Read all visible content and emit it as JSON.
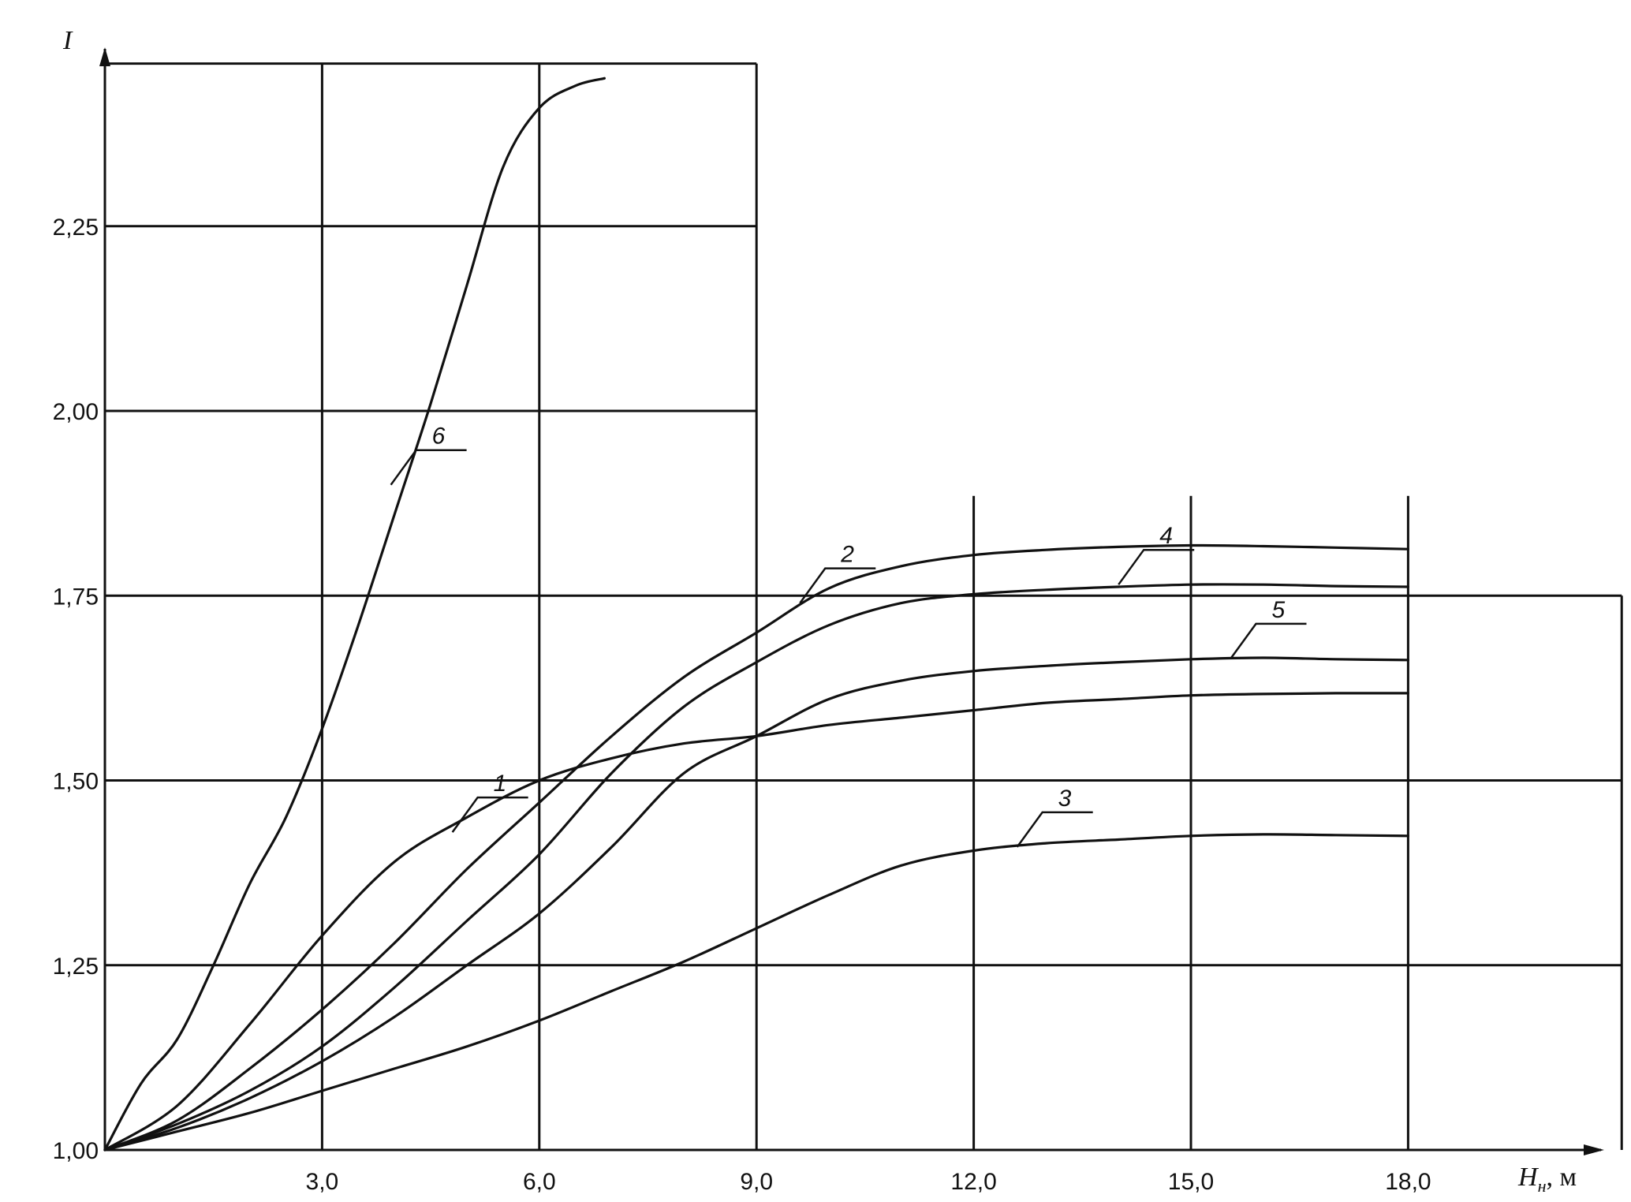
{
  "chart_data": {
    "type": "line",
    "ylabel": "I",
    "xlabel": {
      "symbol": "H",
      "subscript": "н",
      "unit": ", м"
    },
    "xlim": [
      0,
      21
    ],
    "ylim": [
      1.0,
      2.5
    ],
    "x_ticks": [
      {
        "value": 3,
        "label": "3,0"
      },
      {
        "value": 6,
        "label": "6,0"
      },
      {
        "value": 9,
        "label": "9,0"
      },
      {
        "value": 12,
        "label": "12,0"
      },
      {
        "value": 15,
        "label": "15,0"
      },
      {
        "value": 18,
        "label": "18,0"
      }
    ],
    "y_ticks": [
      {
        "value": 1.0,
        "label": "1,00"
      },
      {
        "value": 1.25,
        "label": "1,25"
      },
      {
        "value": 1.5,
        "label": "1,50"
      },
      {
        "value": 1.75,
        "label": "1,75"
      },
      {
        "value": 2.0,
        "label": "2,00"
      },
      {
        "value": 2.25,
        "label": "2,25"
      }
    ],
    "grid": true,
    "line_color": "#111111",
    "series": [
      {
        "name": "1",
        "points": [
          [
            0,
            1.0
          ],
          [
            1,
            1.06
          ],
          [
            2,
            1.17
          ],
          [
            3,
            1.29
          ],
          [
            4,
            1.39
          ],
          [
            5,
            1.45
          ],
          [
            6,
            1.5
          ],
          [
            7,
            1.53
          ],
          [
            8,
            1.55
          ],
          [
            9,
            1.56
          ],
          [
            10,
            1.575
          ],
          [
            11,
            1.585
          ],
          [
            12,
            1.595
          ],
          [
            13,
            1.605
          ],
          [
            14,
            1.61
          ],
          [
            15,
            1.615
          ],
          [
            16,
            1.617
          ],
          [
            17,
            1.618
          ],
          [
            18,
            1.618
          ]
        ]
      },
      {
        "name": "2",
        "points": [
          [
            0,
            1.0
          ],
          [
            1,
            1.04
          ],
          [
            2,
            1.11
          ],
          [
            3,
            1.19
          ],
          [
            4,
            1.28
          ],
          [
            5,
            1.38
          ],
          [
            6,
            1.47
          ],
          [
            7,
            1.56
          ],
          [
            8,
            1.64
          ],
          [
            9,
            1.7
          ],
          [
            10,
            1.76
          ],
          [
            11,
            1.79
          ],
          [
            12,
            1.805
          ],
          [
            13,
            1.812
          ],
          [
            14,
            1.816
          ],
          [
            15,
            1.818
          ],
          [
            16,
            1.817
          ],
          [
            17,
            1.815
          ],
          [
            18,
            1.813
          ]
        ]
      },
      {
        "name": "3",
        "points": [
          [
            0,
            1.0
          ],
          [
            1,
            1.025
          ],
          [
            2,
            1.05
          ],
          [
            3,
            1.08
          ],
          [
            4,
            1.11
          ],
          [
            5,
            1.14
          ],
          [
            6,
            1.175
          ],
          [
            7,
            1.215
          ],
          [
            8,
            1.255
          ],
          [
            9,
            1.3
          ],
          [
            10,
            1.345
          ],
          [
            11,
            1.385
          ],
          [
            12,
            1.405
          ],
          [
            13,
            1.415
          ],
          [
            14,
            1.42
          ],
          [
            15,
            1.425
          ],
          [
            16,
            1.427
          ],
          [
            17,
            1.426
          ],
          [
            18,
            1.425
          ]
        ]
      },
      {
        "name": "4",
        "points": [
          [
            0,
            1.0
          ],
          [
            1,
            1.035
          ],
          [
            2,
            1.08
          ],
          [
            3,
            1.14
          ],
          [
            4,
            1.22
          ],
          [
            5,
            1.31
          ],
          [
            6,
            1.4
          ],
          [
            7,
            1.51
          ],
          [
            8,
            1.6
          ],
          [
            9,
            1.66
          ],
          [
            10,
            1.71
          ],
          [
            11,
            1.74
          ],
          [
            12,
            1.752
          ],
          [
            13,
            1.758
          ],
          [
            14,
            1.762
          ],
          [
            15,
            1.765
          ],
          [
            16,
            1.765
          ],
          [
            17,
            1.763
          ],
          [
            18,
            1.762
          ]
        ]
      },
      {
        "name": "5",
        "points": [
          [
            0,
            1.0
          ],
          [
            1,
            1.03
          ],
          [
            2,
            1.07
          ],
          [
            3,
            1.12
          ],
          [
            4,
            1.18
          ],
          [
            5,
            1.25
          ],
          [
            6,
            1.32
          ],
          [
            7,
            1.41
          ],
          [
            8,
            1.51
          ],
          [
            9,
            1.56
          ],
          [
            10,
            1.61
          ],
          [
            11,
            1.635
          ],
          [
            12,
            1.648
          ],
          [
            13,
            1.655
          ],
          [
            14,
            1.66
          ],
          [
            15,
            1.664
          ],
          [
            16,
            1.666
          ],
          [
            17,
            1.664
          ],
          [
            18,
            1.663
          ]
        ]
      },
      {
        "name": "6",
        "points": [
          [
            0,
            1.0
          ],
          [
            0.5,
            1.09
          ],
          [
            1,
            1.15
          ],
          [
            1.5,
            1.25
          ],
          [
            2,
            1.36
          ],
          [
            2.5,
            1.45
          ],
          [
            3,
            1.57
          ],
          [
            3.5,
            1.71
          ],
          [
            4,
            1.86
          ],
          [
            4.5,
            2.01
          ],
          [
            5,
            2.17
          ],
          [
            5.5,
            2.33
          ],
          [
            6,
            2.41
          ],
          [
            6.5,
            2.44
          ],
          [
            6.9,
            2.45
          ]
        ]
      }
    ],
    "label_anchors": [
      {
        "name": "6",
        "x": 3.95,
        "y": 1.9
      },
      {
        "name": "2",
        "x": 9.6,
        "y": 1.74
      },
      {
        "name": "4",
        "x": 14.0,
        "y": 1.765
      },
      {
        "name": "5",
        "x": 15.55,
        "y": 1.665
      },
      {
        "name": "1",
        "x": 4.8,
        "y": 1.43
      },
      {
        "name": "3",
        "x": 12.6,
        "y": 1.41
      }
    ]
  }
}
